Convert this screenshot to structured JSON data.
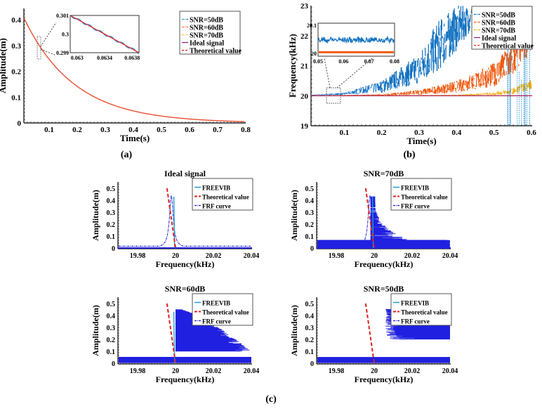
{
  "panel_labels": {
    "a": "(a)",
    "b": "(b)",
    "c": "(c)"
  },
  "chart_data": [
    {
      "id": "a",
      "type": "line",
      "title": "",
      "xlabel": "Time(s)",
      "ylabel": "Amplitude(m)",
      "xlim": [
        0.01,
        0.8
      ],
      "ylim": [
        0,
        0.43
      ],
      "xticks": [
        "0.1",
        "0.2",
        "0.3",
        "0.4",
        "0.5",
        "0.6",
        "0.7",
        "0.8"
      ],
      "yticks": [
        "0",
        "0.1",
        "0.2",
        "0.3",
        "0.4"
      ],
      "model": {
        "amplitude": 0.43,
        "tau": 0.18
      },
      "legend": {
        "position": "top-right",
        "entries": [
          {
            "label": "SNR=50dB",
            "color": "#2a8fd0",
            "style": "dashdot"
          },
          {
            "label": "SNR=60dB",
            "color": "#f07a40",
            "style": "dashdot"
          },
          {
            "label": "SNR=70dB",
            "color": "#f5c060",
            "style": "dashdot"
          },
          {
            "label": "Ideal signal",
            "color": "#8b2b8b",
            "style": "solid"
          },
          {
            "label": "Theoretical value",
            "color": "#e02020",
            "style": "dashed"
          }
        ]
      },
      "inset": {
        "xlim": [
          0.0629,
          0.0639
        ],
        "ylim": [
          0.299,
          0.301
        ],
        "xticks": [
          "0.063",
          "0.0634",
          "0.0638"
        ],
        "yticks": [
          "0.299",
          "0.3",
          "0.301"
        ]
      }
    },
    {
      "id": "b",
      "type": "line",
      "title": "",
      "xlabel": "Time(s)",
      "ylabel": "Frequency(kHz)",
      "xlim": [
        0.01,
        0.6
      ],
      "ylim": [
        19,
        23
      ],
      "xticks": [
        "0.1",
        "0.2",
        "0.3",
        "0.4",
        "0.5",
        "0.6"
      ],
      "yticks": [
        "19",
        "20",
        "21",
        "22",
        "23"
      ],
      "series": [
        {
          "name": "SNR=50dB",
          "color": "#1070c0",
          "x": [
            0.01,
            0.1,
            0.2,
            0.3,
            0.35,
            0.4,
            0.45
          ],
          "upper": [
            20.03,
            20.1,
            20.5,
            21.4,
            22.5,
            23,
            23
          ],
          "lower": [
            20.0,
            20.03,
            20.1,
            20.4,
            20.8,
            21.5,
            22.4
          ]
        },
        {
          "name": "SNR=60dB",
          "color": "#f05a10",
          "x": [
            0.01,
            0.2,
            0.3,
            0.4,
            0.5,
            0.55,
            0.6
          ],
          "upper": [
            20.0,
            20.05,
            20.2,
            20.5,
            21.1,
            21.8,
            23
          ],
          "lower": [
            20.0,
            20.0,
            20.03,
            20.1,
            20.3,
            20.6,
            21.5
          ]
        },
        {
          "name": "SNR=70dB",
          "color": "#f5b010",
          "x": [
            0.01,
            0.4,
            0.5,
            0.55,
            0.6
          ],
          "upper": [
            20.0,
            20.03,
            20.12,
            20.25,
            20.55
          ],
          "lower": [
            20.0,
            20.0,
            20.02,
            20.05,
            20.2
          ]
        },
        {
          "name": "Ideal signal",
          "color": "#8b2b8b",
          "value": 20.0
        },
        {
          "name": "Theoretical value",
          "color": "#e02020",
          "value": 20.0
        }
      ],
      "legend": {
        "position": "top-right"
      },
      "inset": {
        "xlim": [
          0.05,
          0.08
        ],
        "ylim": [
          20,
          20.1
        ],
        "xticks": [
          "0.05",
          "0.06",
          "0.07",
          "0.08"
        ],
        "yticks": [
          "20",
          "20.1"
        ]
      }
    },
    {
      "id": "c1",
      "type": "line",
      "title": "Ideal signal",
      "xlabel": "Frequency(kHz)",
      "ylabel": "Amplitude(m)",
      "xlim": [
        19.97,
        20.04
      ],
      "ylim": [
        0,
        0.55
      ],
      "xticks": [
        "19.98",
        "20",
        "20.02",
        "20.04"
      ],
      "yticks": [
        "0",
        "0.1",
        "0.2",
        "0.3",
        "0.4",
        "0.5"
      ],
      "legend_entries": [
        "FREEVIB",
        "Theoretical value",
        "FRF curve"
      ],
      "noise": "none"
    },
    {
      "id": "c2",
      "type": "line",
      "title": "SNR=70dB",
      "xlabel": "Frequency(kHz)",
      "ylabel": "Amplitude(m)",
      "xlim": [
        19.97,
        20.04
      ],
      "ylim": [
        0,
        0.55
      ],
      "xticks": [
        "19.98",
        "20",
        "20.02",
        "20.04"
      ],
      "yticks": [
        "0",
        "0.1",
        "0.2",
        "0.3",
        "0.4",
        "0.5"
      ],
      "legend_entries": [
        "FREEVIB",
        "Theoretical value",
        "FRF curve"
      ],
      "noise": "low"
    },
    {
      "id": "c3",
      "type": "line",
      "title": "SNR=60dB",
      "xlabel": "Frequency(kHz)",
      "ylabel": "Amplitude(m)",
      "xlim": [
        19.97,
        20.04
      ],
      "ylim": [
        0,
        0.55
      ],
      "xticks": [
        "19.98",
        "20",
        "20.02",
        "20.04"
      ],
      "yticks": [
        "0",
        "0.1",
        "0.2",
        "0.3",
        "0.4",
        "0.5"
      ],
      "legend_entries": [
        "FREEVIB",
        "Theoretical value",
        "FRF curve"
      ],
      "noise": "medium"
    },
    {
      "id": "c4",
      "type": "line",
      "title": "SNR=50dB",
      "xlabel": "Frequency(kHz)",
      "ylabel": "Amplitude(m)",
      "xlim": [
        19.97,
        20.04
      ],
      "ylim": [
        0,
        0.55
      ],
      "xticks": [
        "19.98",
        "20",
        "20.02",
        "20.04"
      ],
      "yticks": [
        "0",
        "0.1",
        "0.2",
        "0.3",
        "0.4",
        "0.5"
      ],
      "legend_entries": [
        "FREEVIB",
        "Theoretical value",
        "FRF curve"
      ],
      "noise": "high"
    }
  ],
  "colors": {
    "freevib": "#1a9fd0",
    "theory": "#e02020",
    "frf": "#2020e0"
  }
}
